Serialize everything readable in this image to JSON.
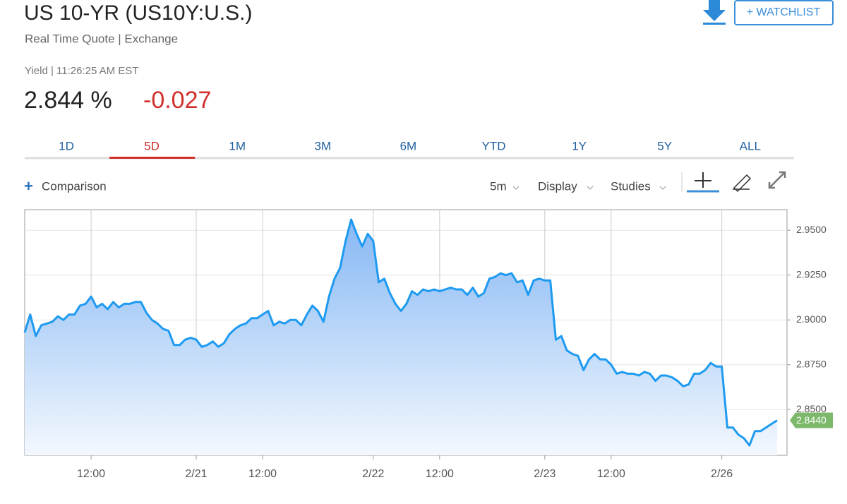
{
  "header": {
    "title": "US 10-YR (US10Y:U.S.)",
    "subtitle": "Real Time Quote | Exchange",
    "yield_info": "Yield | 11:26:25 AM EST",
    "price": "2.844 %",
    "change": "-0.027",
    "watchlist": "+ WATCHLIST"
  },
  "tabs": {
    "items": [
      "1D",
      "5D",
      "1M",
      "3M",
      "6M",
      "YTD",
      "1Y",
      "5Y",
      "ALL"
    ],
    "active": 1
  },
  "toolbar": {
    "comparison": "Comparison",
    "interval": "5m",
    "display": "Display",
    "studies": "Studies"
  },
  "chart_data": {
    "type": "area",
    "categories": [
      null,
      null,
      null,
      null,
      null,
      null,
      null,
      null,
      null,
      null,
      null,
      null,
      "12:00",
      null,
      null,
      null,
      null,
      null,
      null,
      null,
      null,
      null,
      null,
      null,
      null,
      null,
      null,
      null,
      null,
      null,
      null,
      "2/21",
      null,
      null,
      null,
      null,
      null,
      null,
      null,
      null,
      null,
      null,
      null,
      "12:00",
      null,
      null,
      null,
      null,
      null,
      null,
      null,
      null,
      null,
      null,
      null,
      null,
      null,
      null,
      null,
      null,
      null,
      null,
      null,
      "2/22",
      null,
      null,
      null,
      null,
      null,
      null,
      null,
      null,
      null,
      null,
      null,
      "12:00",
      null,
      null,
      null,
      null,
      null,
      null,
      null,
      null,
      null,
      null,
      null,
      null,
      null,
      null,
      null,
      null,
      null,
      null,
      "2/23",
      null,
      null,
      null,
      null,
      null,
      null,
      null,
      null,
      null,
      null,
      null,
      "12:00",
      null,
      null,
      null,
      null,
      null,
      null,
      null,
      null,
      null,
      null,
      null,
      null,
      null,
      null,
      null,
      null,
      null,
      null,
      null,
      "2/26",
      null,
      null,
      null,
      null,
      null,
      null,
      null,
      null,
      null,
      null
    ],
    "values": [
      2.893,
      2.903,
      2.891,
      2.897,
      2.898,
      2.899,
      2.902,
      2.9,
      2.903,
      2.903,
      2.908,
      2.909,
      2.913,
      2.907,
      2.909,
      2.906,
      2.91,
      2.907,
      2.909,
      2.909,
      2.91,
      2.91,
      2.904,
      2.9,
      2.898,
      2.895,
      2.894,
      2.886,
      2.886,
      2.889,
      2.89,
      2.889,
      2.885,
      2.886,
      2.888,
      2.885,
      2.887,
      2.892,
      2.895,
      2.897,
      2.898,
      2.901,
      2.901,
      2.903,
      2.905,
      2.897,
      2.899,
      2.898,
      2.9,
      2.9,
      2.897,
      2.903,
      2.908,
      2.905,
      2.899,
      2.913,
      2.923,
      2.929,
      2.944,
      2.956,
      2.948,
      2.941,
      2.948,
      2.944,
      2.921,
      2.923,
      2.915,
      2.909,
      2.905,
      2.909,
      2.916,
      2.914,
      2.917,
      2.916,
      2.917,
      2.916,
      2.917,
      2.918,
      2.917,
      2.917,
      2.914,
      2.918,
      2.913,
      2.915,
      2.923,
      2.924,
      2.926,
      2.925,
      2.926,
      2.921,
      2.922,
      2.914,
      2.922,
      2.923,
      2.922,
      2.922,
      2.889,
      2.891,
      2.883,
      2.881,
      2.88,
      2.872,
      2.878,
      2.881,
      2.878,
      2.878,
      2.875,
      2.87,
      2.871,
      2.87,
      2.87,
      2.869,
      2.871,
      2.87,
      2.866,
      2.869,
      2.869,
      2.868,
      2.866,
      2.863,
      2.864,
      2.87,
      2.87,
      2.872,
      2.876,
      2.874,
      2.874,
      2.84,
      2.84,
      2.836,
      2.834,
      2.83,
      2.838,
      2.838,
      2.84,
      2.842,
      2.844
    ],
    "last_value_label": "2.8440",
    "color": "#1e9af0",
    "ylim": [
      2.8245,
      2.9615
    ],
    "yticks": [
      {
        "value": 2.85,
        "label": "2.8500"
      },
      {
        "value": 2.875,
        "label": "2.8750"
      },
      {
        "value": 2.9,
        "label": "2.9000"
      },
      {
        "value": 2.925,
        "label": "2.9250"
      },
      {
        "value": 2.95,
        "label": "2.9500"
      }
    ],
    "grid": true
  }
}
